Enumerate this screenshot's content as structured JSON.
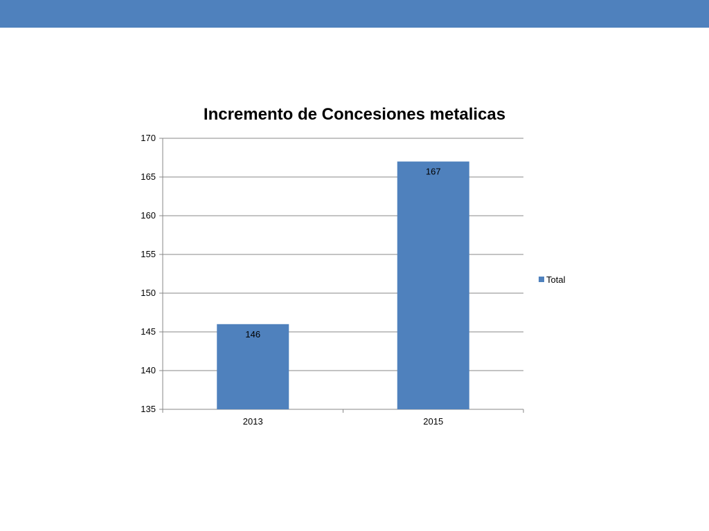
{
  "slide": {
    "top_bar_color": "#4f81bd"
  },
  "chart_data": {
    "type": "bar",
    "title": "Incremento de Concesiones metalicas",
    "categories": [
      "2013",
      "2015"
    ],
    "series": [
      {
        "name": "Total",
        "values": [
          146,
          167
        ],
        "color": "#4f81bd"
      }
    ],
    "ylim": [
      135,
      170
    ],
    "yticks": [
      135,
      140,
      145,
      150,
      155,
      160,
      165,
      170
    ],
    "data_labels": [
      "146",
      "167"
    ],
    "grid": true,
    "legend": "right"
  }
}
